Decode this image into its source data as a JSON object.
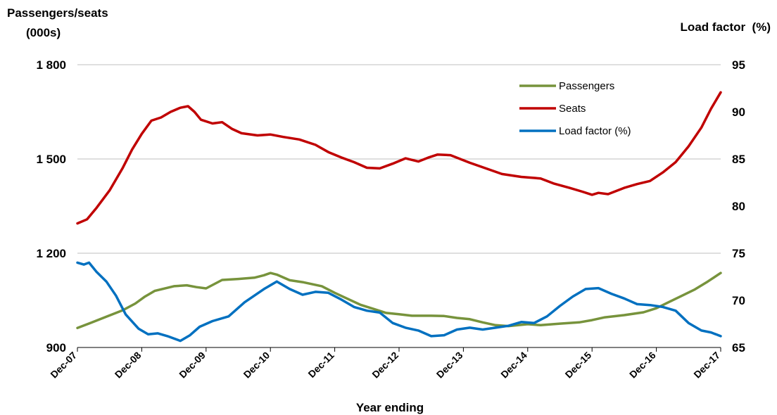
{
  "chart_data": {
    "type": "line",
    "left_axis_title_line1": "Passengers/seats",
    "left_axis_title_line2": "(000s)",
    "right_axis_title": "Load factor  (%)",
    "xlabel": "Year ending",
    "left_ylim": [
      900,
      1800
    ],
    "left_ticks": [
      "900",
      "1 200",
      "1 500",
      "1 800"
    ],
    "right_ylim": [
      65,
      95
    ],
    "right_ticks": [
      "65",
      "70",
      "75",
      "80",
      "85",
      "90",
      "95"
    ],
    "x_ticks": [
      "Dec-07",
      "Dec-08",
      "Dec-09",
      "Dec-10",
      "Dec-11",
      "Dec-12",
      "Dec-13",
      "Dec-14",
      "Dec-15",
      "Dec-16",
      "Dec-17"
    ],
    "grid": true,
    "legend_position": "top-right",
    "series": [
      {
        "name": "Passengers",
        "axis": "left",
        "color": "#77933C",
        "points": [
          [
            0,
            962
          ],
          [
            0.2,
            978
          ],
          [
            0.45,
            998
          ],
          [
            0.7,
            1018
          ],
          [
            0.9,
            1040
          ],
          [
            1.05,
            1062
          ],
          [
            1.2,
            1080
          ],
          [
            1.5,
            1095
          ],
          [
            1.7,
            1098
          ],
          [
            1.85,
            1092
          ],
          [
            2.0,
            1088
          ],
          [
            2.25,
            1115
          ],
          [
            2.5,
            1118
          ],
          [
            2.75,
            1122
          ],
          [
            2.9,
            1130
          ],
          [
            3.0,
            1137
          ],
          [
            3.1,
            1132
          ],
          [
            3.3,
            1114
          ],
          [
            3.5,
            1108
          ],
          [
            3.8,
            1095
          ],
          [
            4.0,
            1074
          ],
          [
            4.2,
            1055
          ],
          [
            4.4,
            1036
          ],
          [
            4.6,
            1023
          ],
          [
            4.8,
            1010
          ],
          [
            5.0,
            1006
          ],
          [
            5.2,
            1001
          ],
          [
            5.5,
            1001
          ],
          [
            5.7,
            1000
          ],
          [
            5.9,
            994
          ],
          [
            6.1,
            990
          ],
          [
            6.3,
            980
          ],
          [
            6.5,
            971
          ],
          [
            6.7,
            968
          ],
          [
            7.0,
            974
          ],
          [
            7.2,
            971
          ],
          [
            7.5,
            976
          ],
          [
            7.8,
            980
          ],
          [
            8.0,
            987
          ],
          [
            8.2,
            996
          ],
          [
            8.5,
            1003
          ],
          [
            8.8,
            1012
          ],
          [
            9.0,
            1025
          ],
          [
            9.2,
            1045
          ],
          [
            9.4,
            1065
          ],
          [
            9.6,
            1085
          ],
          [
            9.8,
            1110
          ],
          [
            10.0,
            1137
          ]
        ]
      },
      {
        "name": "Seats",
        "axis": "left",
        "color": "#C00000",
        "points": [
          [
            0,
            1295
          ],
          [
            0.15,
            1308
          ],
          [
            0.3,
            1345
          ],
          [
            0.5,
            1400
          ],
          [
            0.7,
            1470
          ],
          [
            0.85,
            1530
          ],
          [
            1.0,
            1580
          ],
          [
            1.15,
            1622
          ],
          [
            1.3,
            1632
          ],
          [
            1.45,
            1650
          ],
          [
            1.6,
            1663
          ],
          [
            1.72,
            1668
          ],
          [
            1.82,
            1650
          ],
          [
            1.92,
            1625
          ],
          [
            2.1,
            1613
          ],
          [
            2.25,
            1617
          ],
          [
            2.4,
            1596
          ],
          [
            2.55,
            1582
          ],
          [
            2.8,
            1575
          ],
          [
            3.0,
            1578
          ],
          [
            3.2,
            1570
          ],
          [
            3.45,
            1562
          ],
          [
            3.7,
            1545
          ],
          [
            3.9,
            1522
          ],
          [
            4.1,
            1505
          ],
          [
            4.3,
            1490
          ],
          [
            4.5,
            1472
          ],
          [
            4.7,
            1470
          ],
          [
            4.9,
            1485
          ],
          [
            5.1,
            1502
          ],
          [
            5.3,
            1492
          ],
          [
            5.45,
            1504
          ],
          [
            5.6,
            1514
          ],
          [
            5.8,
            1512
          ],
          [
            5.95,
            1500
          ],
          [
            6.1,
            1488
          ],
          [
            6.35,
            1470
          ],
          [
            6.6,
            1452
          ],
          [
            6.9,
            1443
          ],
          [
            7.2,
            1438
          ],
          [
            7.4,
            1422
          ],
          [
            7.65,
            1408
          ],
          [
            7.85,
            1396
          ],
          [
            8.0,
            1386
          ],
          [
            8.1,
            1392
          ],
          [
            8.25,
            1388
          ],
          [
            8.5,
            1408
          ],
          [
            8.7,
            1420
          ],
          [
            8.9,
            1430
          ],
          [
            9.1,
            1457
          ],
          [
            9.3,
            1490
          ],
          [
            9.5,
            1540
          ],
          [
            9.7,
            1600
          ],
          [
            9.85,
            1660
          ],
          [
            10.0,
            1712
          ]
        ]
      },
      {
        "name": "Load factor (%)",
        "axis": "right",
        "color": "#0070C0",
        "points": [
          [
            0,
            74.0
          ],
          [
            0.1,
            73.8
          ],
          [
            0.18,
            74.0
          ],
          [
            0.3,
            73.0
          ],
          [
            0.45,
            72.0
          ],
          [
            0.6,
            70.5
          ],
          [
            0.75,
            68.5
          ],
          [
            0.95,
            67.0
          ],
          [
            1.1,
            66.4
          ],
          [
            1.25,
            66.5
          ],
          [
            1.4,
            66.2
          ],
          [
            1.6,
            65.7
          ],
          [
            1.75,
            66.3
          ],
          [
            1.9,
            67.2
          ],
          [
            2.1,
            67.8
          ],
          [
            2.35,
            68.3
          ],
          [
            2.6,
            69.8
          ],
          [
            2.9,
            71.2
          ],
          [
            3.1,
            72.0
          ],
          [
            3.3,
            71.2
          ],
          [
            3.5,
            70.6
          ],
          [
            3.7,
            70.9
          ],
          [
            3.9,
            70.8
          ],
          [
            4.1,
            70.1
          ],
          [
            4.3,
            69.3
          ],
          [
            4.5,
            68.9
          ],
          [
            4.7,
            68.7
          ],
          [
            4.9,
            67.6
          ],
          [
            5.1,
            67.1
          ],
          [
            5.3,
            66.8
          ],
          [
            5.5,
            66.2
          ],
          [
            5.7,
            66.3
          ],
          [
            5.9,
            66.9
          ],
          [
            6.1,
            67.1
          ],
          [
            6.3,
            66.9
          ],
          [
            6.5,
            67.1
          ],
          [
            6.7,
            67.3
          ],
          [
            6.9,
            67.7
          ],
          [
            7.1,
            67.6
          ],
          [
            7.3,
            68.3
          ],
          [
            7.5,
            69.4
          ],
          [
            7.7,
            70.4
          ],
          [
            7.9,
            71.2
          ],
          [
            8.1,
            71.3
          ],
          [
            8.3,
            70.7
          ],
          [
            8.5,
            70.2
          ],
          [
            8.7,
            69.6
          ],
          [
            8.9,
            69.5
          ],
          [
            9.1,
            69.3
          ],
          [
            9.3,
            68.9
          ],
          [
            9.5,
            67.6
          ],
          [
            9.7,
            66.8
          ],
          [
            9.85,
            66.6
          ],
          [
            10.0,
            66.2
          ]
        ]
      }
    ]
  }
}
